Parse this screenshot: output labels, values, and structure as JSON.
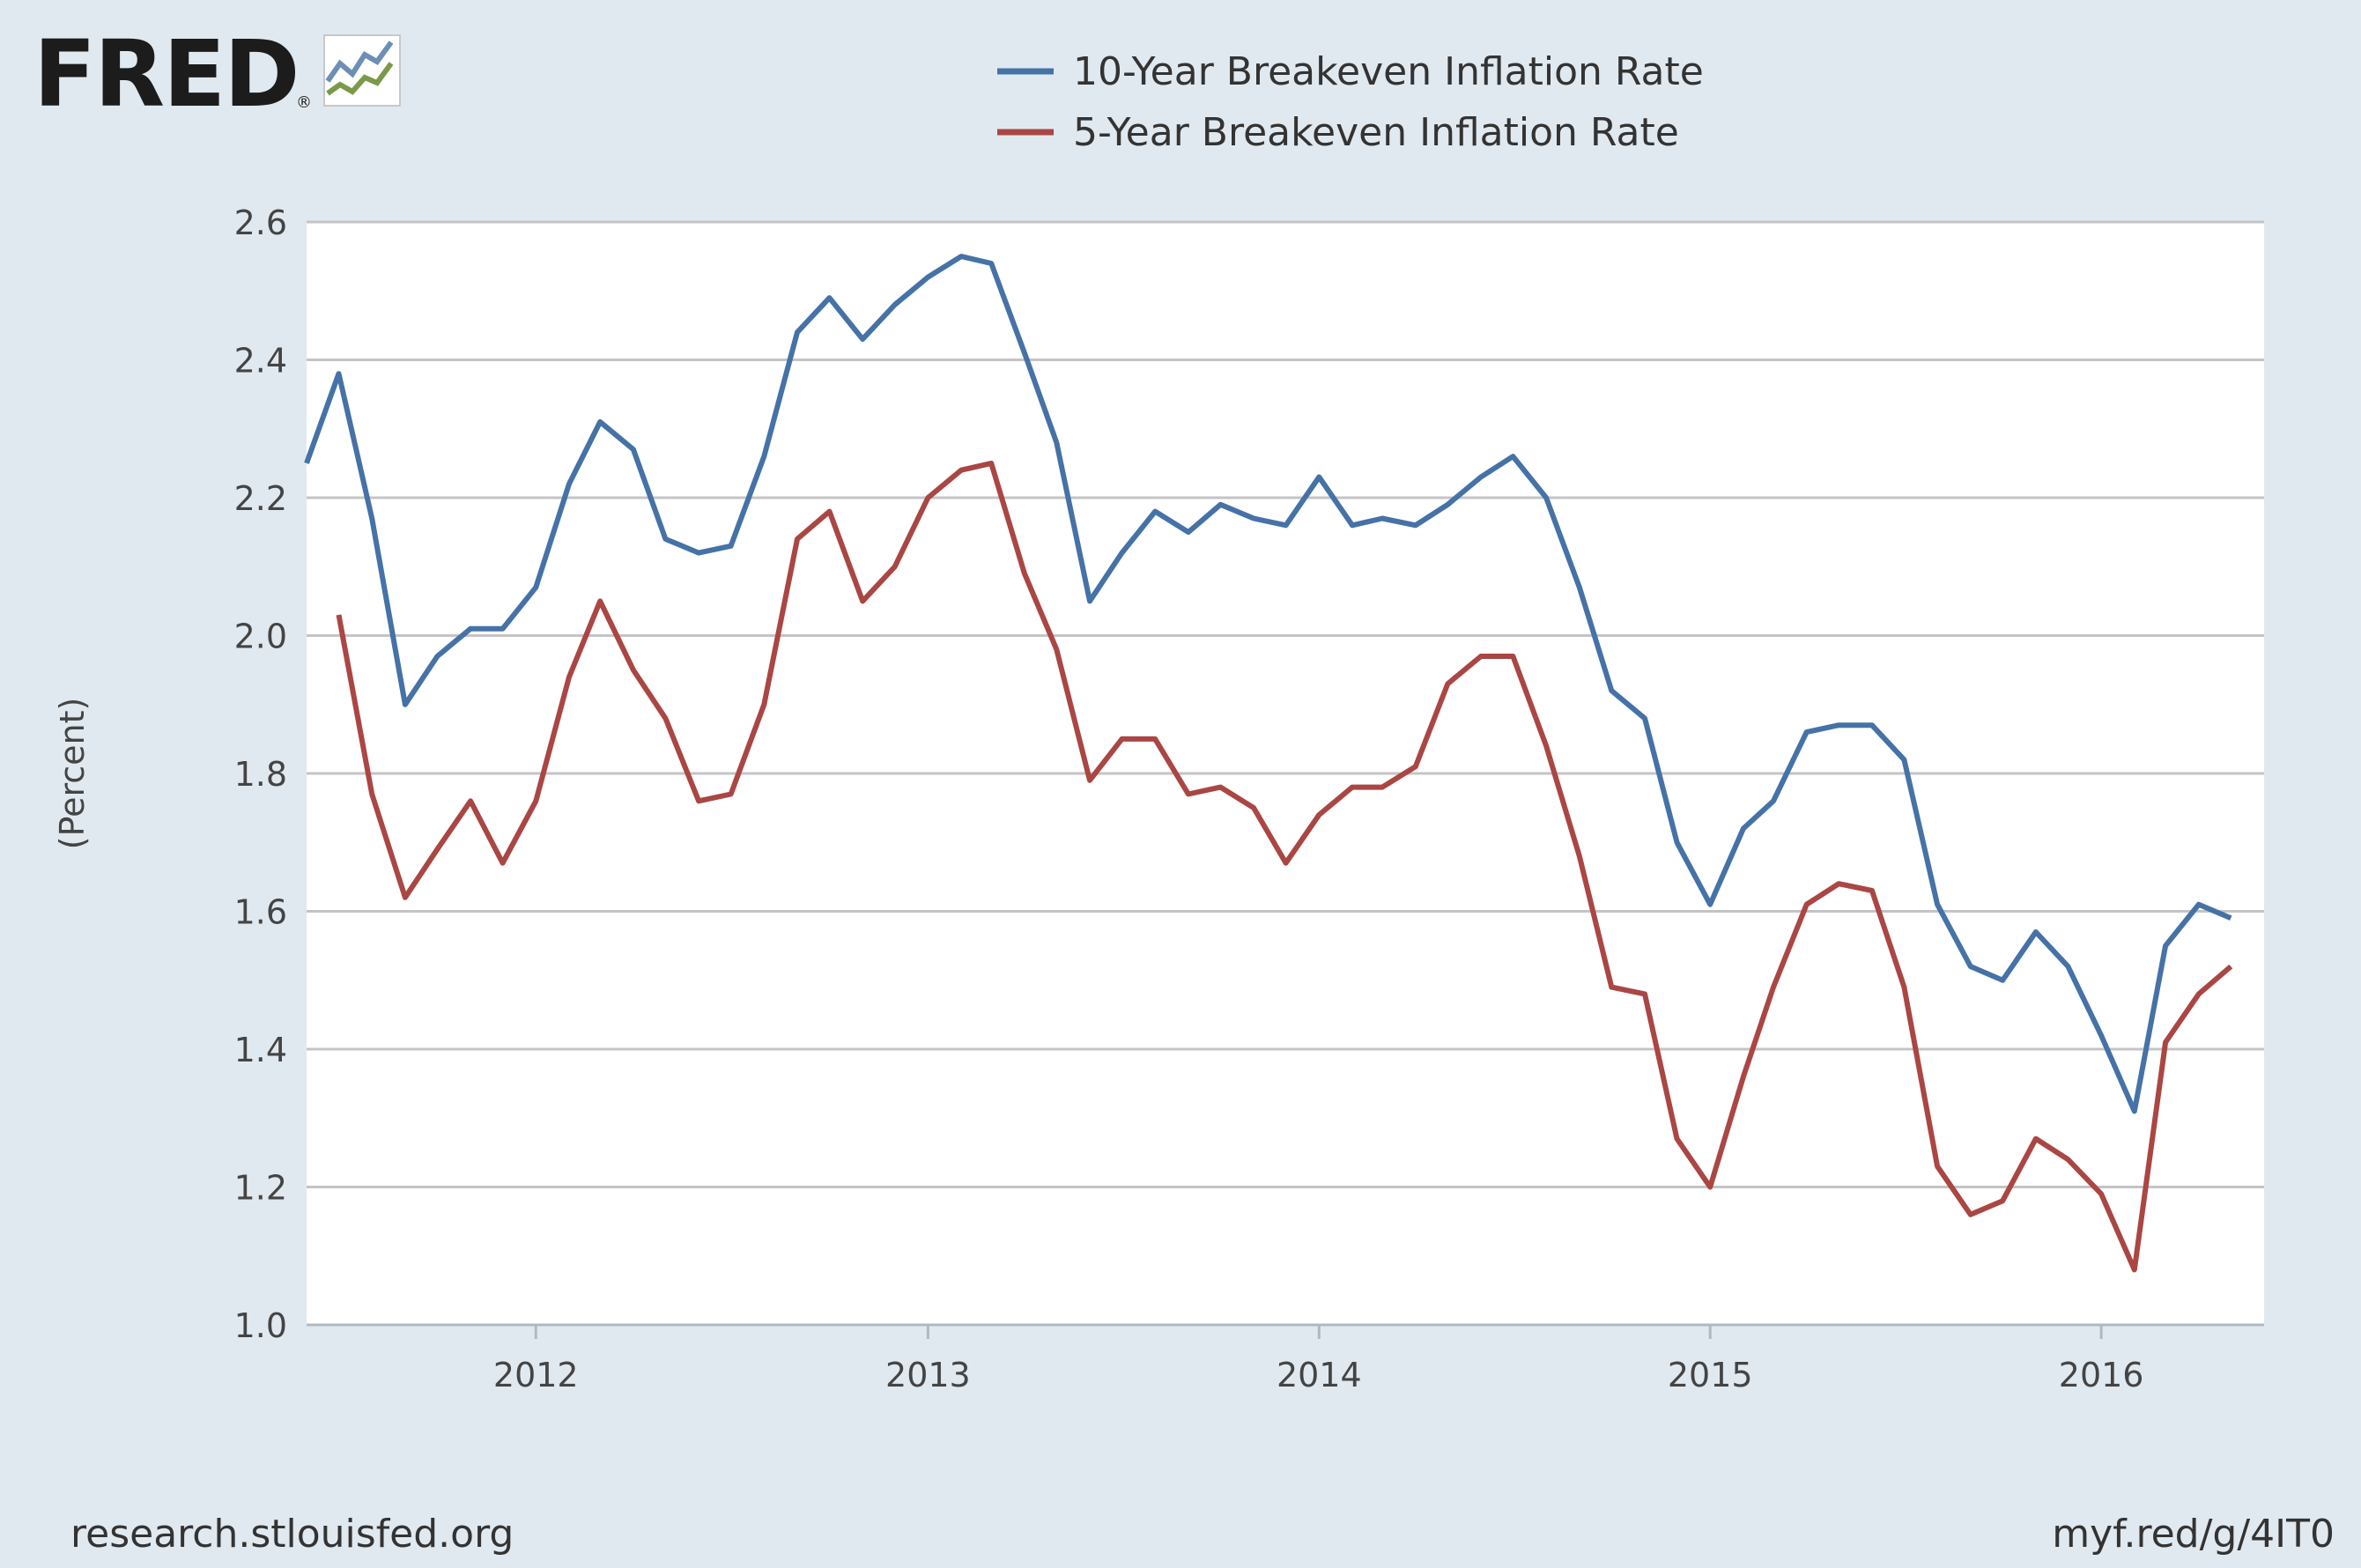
{
  "footer": {
    "source": "research.stlouisfed.org",
    "short_link": "myf.red/g/4IT0"
  },
  "logo": {
    "text": "FRED"
  },
  "chart_data": {
    "type": "line",
    "ylabel": "(Percent)",
    "ylim": [
      1.0,
      2.6
    ],
    "xlim": [
      "2011-06-01",
      "2016-06-01"
    ],
    "yticks": [
      1.0,
      1.2,
      1.4,
      1.6,
      1.8,
      2.0,
      2.2,
      2.4,
      2.6
    ],
    "xticks": [
      {
        "date": "2012-01-01",
        "label": "2012"
      },
      {
        "date": "2013-01-01",
        "label": "2013"
      },
      {
        "date": "2014-01-01",
        "label": "2014"
      },
      {
        "date": "2015-01-01",
        "label": "2015"
      },
      {
        "date": "2016-01-01",
        "label": "2016"
      }
    ],
    "grid": "horizontal",
    "legend_position": "top",
    "series": [
      {
        "name": "10-Year Breakeven Inflation Rate",
        "color": "#4572a7",
        "x": [
          "2011-06",
          "2011-07",
          "2011-08",
          "2011-09",
          "2011-10",
          "2011-11",
          "2011-12",
          "2012-01",
          "2012-02",
          "2012-03",
          "2012-04",
          "2012-05",
          "2012-06",
          "2012-07",
          "2012-08",
          "2012-09",
          "2012-10",
          "2012-11",
          "2012-12",
          "2013-01",
          "2013-02",
          "2013-03",
          "2013-04",
          "2013-05",
          "2013-06",
          "2013-07",
          "2013-08",
          "2013-09",
          "2013-10",
          "2013-11",
          "2013-12",
          "2014-01",
          "2014-02",
          "2014-03",
          "2014-04",
          "2014-05",
          "2014-06",
          "2014-07",
          "2014-08",
          "2014-09",
          "2014-10",
          "2014-11",
          "2014-12",
          "2015-01",
          "2015-02",
          "2015-03",
          "2015-04",
          "2015-05",
          "2015-06",
          "2015-07",
          "2015-08",
          "2015-09",
          "2015-10",
          "2015-11",
          "2015-12",
          "2016-01",
          "2016-02",
          "2016-03",
          "2016-04",
          "2016-05"
        ],
        "values": [
          2.25,
          2.38,
          2.17,
          1.9,
          1.97,
          2.01,
          2.01,
          2.07,
          2.22,
          2.31,
          2.27,
          2.14,
          2.12,
          2.13,
          2.26,
          2.44,
          2.49,
          2.43,
          2.48,
          2.52,
          2.55,
          2.54,
          2.41,
          2.28,
          2.05,
          2.12,
          2.18,
          2.15,
          2.19,
          2.17,
          2.16,
          2.23,
          2.16,
          2.17,
          2.16,
          2.19,
          2.23,
          2.26,
          2.2,
          2.07,
          1.92,
          1.88,
          1.7,
          1.61,
          1.72,
          1.76,
          1.86,
          1.87,
          1.87,
          1.82,
          1.61,
          1.52,
          1.5,
          1.57,
          1.52,
          1.42,
          1.31,
          1.55,
          1.61,
          1.59
        ]
      },
      {
        "name": "5-Year Breakeven Inflation Rate",
        "color": "#aa4643",
        "x": [
          "2011-07",
          "2011-08",
          "2011-09",
          "2011-10",
          "2011-11",
          "2011-12",
          "2012-01",
          "2012-02",
          "2012-03",
          "2012-04",
          "2012-05",
          "2012-06",
          "2012-07",
          "2012-08",
          "2012-09",
          "2012-10",
          "2012-11",
          "2012-12",
          "2013-01",
          "2013-02",
          "2013-03",
          "2013-04",
          "2013-05",
          "2013-06",
          "2013-07",
          "2013-08",
          "2013-09",
          "2013-10",
          "2013-11",
          "2013-12",
          "2014-01",
          "2014-02",
          "2014-03",
          "2014-04",
          "2014-05",
          "2014-06",
          "2014-07",
          "2014-08",
          "2014-09",
          "2014-10",
          "2014-11",
          "2014-12",
          "2015-01",
          "2015-02",
          "2015-03",
          "2015-04",
          "2015-05",
          "2015-06",
          "2015-07",
          "2015-08",
          "2015-09",
          "2015-10",
          "2015-11",
          "2015-12",
          "2016-01",
          "2016-02",
          "2016-03",
          "2016-04",
          "2016-05"
        ],
        "values": [
          2.03,
          1.77,
          1.62,
          1.69,
          1.76,
          1.67,
          1.76,
          1.94,
          2.05,
          1.95,
          1.88,
          1.76,
          1.77,
          1.9,
          2.14,
          2.18,
          2.05,
          2.1,
          2.2,
          2.24,
          2.25,
          2.09,
          1.98,
          1.79,
          1.85,
          1.85,
          1.77,
          1.78,
          1.75,
          1.67,
          1.74,
          1.78,
          1.78,
          1.81,
          1.93,
          1.97,
          1.97,
          1.84,
          1.68,
          1.49,
          1.48,
          1.27,
          1.2,
          1.36,
          1.49,
          1.61,
          1.64,
          1.63,
          1.49,
          1.23,
          1.16,
          1.18,
          1.27,
          1.24,
          1.19,
          1.08,
          1.41,
          1.48,
          1.52
        ]
      }
    ]
  }
}
